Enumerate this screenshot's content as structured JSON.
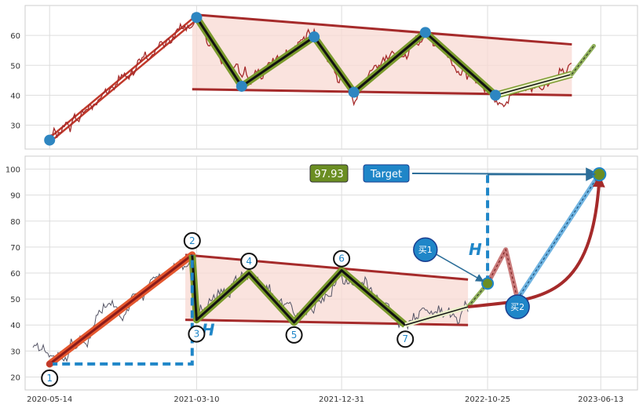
{
  "chart_data": [
    {
      "type": "line",
      "panel": "top",
      "ylim": [
        22,
        70
      ],
      "yticks": [
        30,
        40,
        50,
        60
      ],
      "grid": true,
      "colors": {
        "price": "#a52a2a",
        "channel_fill": "#f8d9d3",
        "channel_edge": "#a52a2a",
        "zigzag": "#111111",
        "zigzag_glow": "#7a9a2c",
        "pivot": "#2e86c1",
        "rise": "#c0392b",
        "projection": "#8fb05a"
      },
      "channel": {
        "upper": [
          [
            "2021-03-01",
            67
          ],
          [
            "2023-04-15",
            57
          ]
        ],
        "lower": [
          [
            "2021-03-01",
            42
          ],
          [
            "2023-04-15",
            40
          ]
        ]
      },
      "pivots": [
        {
          "x": "2020-05-14",
          "y": 25
        },
        {
          "x": "2021-03-10",
          "y": 66
        },
        {
          "x": "2021-06-10",
          "y": 43
        },
        {
          "x": "2021-11-05",
          "y": 59.5
        },
        {
          "x": "2022-01-25",
          "y": 41
        },
        {
          "x": "2022-06-20",
          "y": 61
        },
        {
          "x": "2022-11-10",
          "y": 40
        },
        {
          "x": "2023-04-15",
          "y": 47
        }
      ],
      "projection": [
        [
          "2023-04-15",
          47
        ],
        [
          "2023-05-30",
          56.5
        ]
      ]
    },
    {
      "type": "line",
      "panel": "bottom",
      "ylim": [
        15,
        105
      ],
      "yticks": [
        20,
        30,
        40,
        50,
        60,
        70,
        80,
        90,
        100
      ],
      "xticks": [
        "2020-05-14",
        "2021-03-10",
        "2021-12-31",
        "2022-10-25",
        "2023-06-13"
      ],
      "grid": true,
      "colors": {
        "price": "#555566",
        "channel_fill": "#f8d9d3",
        "channel_edge": "#a52a2a",
        "zigzag": "#111111",
        "zigzag_glow": "#7a9a2c",
        "rise": "#c0392b",
        "dashed": "#1f86c8",
        "marker_blue": "#1f86c8",
        "target_box": "#1f86c8",
        "value_box": "#6b8e23",
        "arc": "#a52a2a"
      },
      "channel": {
        "upper": [
          [
            "2021-02-15",
            67
          ],
          [
            "2022-09-15",
            57.5
          ]
        ],
        "lower": [
          [
            "2021-02-15",
            42
          ],
          [
            "2022-09-15",
            40
          ]
        ]
      },
      "pivots": [
        {
          "label": "1",
          "x": "2020-05-14",
          "y": 25
        },
        {
          "label": "2",
          "x": "2021-03-01",
          "y": 67
        },
        {
          "label": "3",
          "x": "2021-03-10",
          "y": 42
        },
        {
          "label": "4",
          "x": "2021-06-25",
          "y": 60
        },
        {
          "label": "5",
          "x": "2021-09-25",
          "y": 41
        },
        {
          "label": "6",
          "x": "2021-12-31",
          "y": 61
        },
        {
          "label": "7",
          "x": "2022-05-10",
          "y": 40
        },
        {
          "label": "",
          "x": "2022-09-15",
          "y": 47
        }
      ],
      "breakout": [
        [
          "2022-09-15",
          47
        ],
        [
          "2022-10-25",
          56
        ]
      ],
      "retrace": [
        [
          "2022-10-25",
          56
        ],
        [
          "2022-12-01",
          69
        ],
        [
          "2022-12-25",
          50
        ]
      ],
      "advance": [
        [
          "2022-12-25",
          50
        ],
        [
          "2023-06-10",
          98
        ]
      ],
      "target_value": "97.93",
      "target_label": "Target",
      "h_label": "H",
      "buy1_label": "买1",
      "buy2_label": "买2"
    }
  ]
}
